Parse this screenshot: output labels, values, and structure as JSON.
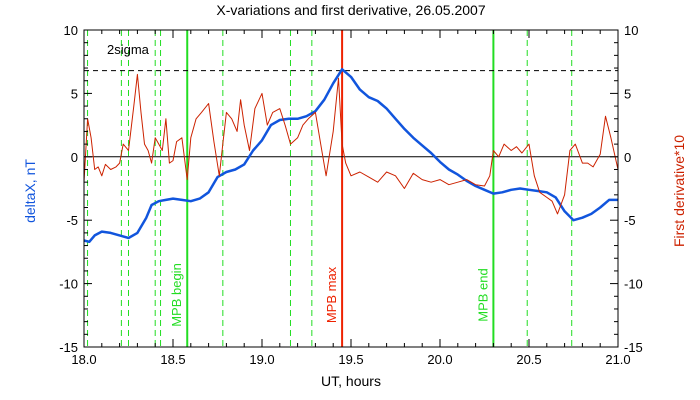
{
  "chart_data": {
    "type": "line",
    "title": "X-variations and first derivative, 26.05.2007",
    "xlabel": "UT, hours",
    "ylabel_left": "deltaX, nT",
    "ylabel_right": "First derivative*10",
    "xlim": [
      18.0,
      21.0
    ],
    "ylim": [
      -15,
      10
    ],
    "x_ticks": [
      "18.0",
      "18.5",
      "19.0",
      "19.5",
      "20.0",
      "20.5",
      "21.0"
    ],
    "x_tick_values": [
      18.0,
      18.5,
      19.0,
      19.5,
      20.0,
      20.5,
      21.0
    ],
    "y_ticks": [
      "10",
      "5",
      "0",
      "-5",
      "-10",
      "-15"
    ],
    "y_tick_values": [
      10,
      5,
      0,
      -5,
      -10,
      -15
    ],
    "threshold": {
      "label": "2sigma",
      "value": 6.8
    },
    "markers": [
      {
        "name": "MPB begin",
        "x": 18.58,
        "color": "#22dd22"
      },
      {
        "name": "MPB max",
        "x": 19.45,
        "color": "#ee2200"
      },
      {
        "name": "MPB end",
        "x": 20.3,
        "color": "#22dd22"
      }
    ],
    "dashed_markers_x": [
      18.02,
      18.21,
      18.25,
      18.4,
      18.43,
      18.78,
      19.16,
      19.28,
      20.49,
      20.74
    ],
    "series": [
      {
        "axis": "left",
        "color": "#1155dd",
        "x": [
          18.0,
          18.03,
          18.06,
          18.1,
          18.15,
          18.2,
          18.25,
          18.3,
          18.35,
          18.38,
          18.42,
          18.46,
          18.5,
          18.55,
          18.6,
          18.65,
          18.7,
          18.75,
          18.8,
          18.85,
          18.9,
          18.95,
          19.0,
          19.05,
          19.1,
          19.15,
          19.2,
          19.25,
          19.3,
          19.35,
          19.4,
          19.45,
          19.5,
          19.55,
          19.6,
          19.65,
          19.7,
          19.75,
          19.8,
          19.85,
          19.9,
          19.95,
          20.0,
          20.05,
          20.1,
          20.15,
          20.2,
          20.25,
          20.3,
          20.35,
          20.4,
          20.45,
          20.5,
          20.55,
          20.6,
          20.65,
          20.7,
          20.75,
          20.8,
          20.85,
          20.9,
          20.95,
          21.0
        ],
        "values": [
          -6.6,
          -6.7,
          -6.2,
          -5.9,
          -6.0,
          -6.2,
          -6.4,
          -6.0,
          -4.8,
          -3.8,
          -3.5,
          -3.4,
          -3.3,
          -3.4,
          -3.5,
          -3.3,
          -2.8,
          -1.6,
          -1.2,
          -1.0,
          -0.6,
          0.5,
          1.3,
          2.5,
          2.9,
          3.0,
          3.0,
          3.2,
          3.6,
          4.5,
          5.8,
          6.9,
          6.3,
          5.3,
          4.7,
          4.4,
          3.8,
          3.0,
          2.2,
          1.5,
          0.9,
          0.3,
          -0.4,
          -1.0,
          -1.4,
          -1.9,
          -2.3,
          -2.6,
          -2.9,
          -2.8,
          -2.6,
          -2.5,
          -2.6,
          -2.7,
          -2.8,
          -3.2,
          -4.3,
          -5.0,
          -4.8,
          -4.5,
          -4.0,
          -3.4,
          -3.4
        ]
      },
      {
        "axis": "right",
        "color": "#cc2200",
        "x": [
          18.0,
          18.02,
          18.04,
          18.06,
          18.08,
          18.1,
          18.12,
          18.15,
          18.18,
          18.2,
          18.22,
          18.25,
          18.28,
          18.3,
          18.32,
          18.34,
          18.36,
          18.38,
          18.4,
          18.42,
          18.44,
          18.46,
          18.48,
          18.5,
          18.52,
          18.55,
          18.58,
          18.6,
          18.63,
          18.66,
          18.7,
          18.73,
          18.76,
          18.78,
          18.8,
          18.83,
          18.86,
          18.88,
          18.9,
          18.93,
          18.96,
          19.0,
          19.03,
          19.06,
          19.1,
          19.13,
          19.16,
          19.2,
          19.23,
          19.26,
          19.3,
          19.33,
          19.36,
          19.4,
          19.43,
          19.45,
          19.47,
          19.5,
          19.55,
          19.6,
          19.65,
          19.7,
          19.75,
          19.8,
          19.85,
          19.9,
          19.95,
          20.0,
          20.05,
          20.1,
          20.15,
          20.2,
          20.25,
          20.28,
          20.3,
          20.33,
          20.36,
          20.4,
          20.43,
          20.46,
          20.5,
          20.53,
          20.56,
          20.6,
          20.63,
          20.66,
          20.7,
          20.73,
          20.76,
          20.8,
          20.83,
          20.86,
          20.9,
          20.93,
          20.96,
          21.0
        ],
        "values": [
          -2.0,
          3.0,
          1.5,
          -1.0,
          -0.8,
          -1.5,
          -0.6,
          -1.0,
          -0.8,
          -0.5,
          1.0,
          0.5,
          4.0,
          6.5,
          3.5,
          1.0,
          0.5,
          -0.5,
          1.5,
          1.0,
          0.5,
          3.0,
          -0.5,
          -0.3,
          1.2,
          1.5,
          -1.8,
          1.5,
          3.0,
          3.5,
          4.2,
          1.2,
          -1.5,
          1.0,
          3.5,
          3.0,
          2.0,
          4.5,
          2.5,
          0.5,
          3.8,
          5.0,
          2.5,
          3.5,
          3.8,
          2.5,
          1.0,
          1.5,
          2.5,
          3.0,
          3.5,
          1.0,
          -1.5,
          2.0,
          6.2,
          1.0,
          -0.5,
          -1.5,
          -1.2,
          -1.6,
          -2.0,
          -1.2,
          -1.5,
          -2.5,
          -1.3,
          -1.8,
          -2.0,
          -1.8,
          -2.2,
          -2.0,
          -1.8,
          -2.2,
          -2.3,
          -1.5,
          0.5,
          0.0,
          1.0,
          0.5,
          0.8,
          0.3,
          1.0,
          -1.5,
          -2.8,
          -3.2,
          -3.5,
          -4.5,
          -3.0,
          0.5,
          1.0,
          -0.5,
          -0.5,
          -0.8,
          0.2,
          3.2,
          1.5,
          -1.0
        ]
      }
    ]
  }
}
